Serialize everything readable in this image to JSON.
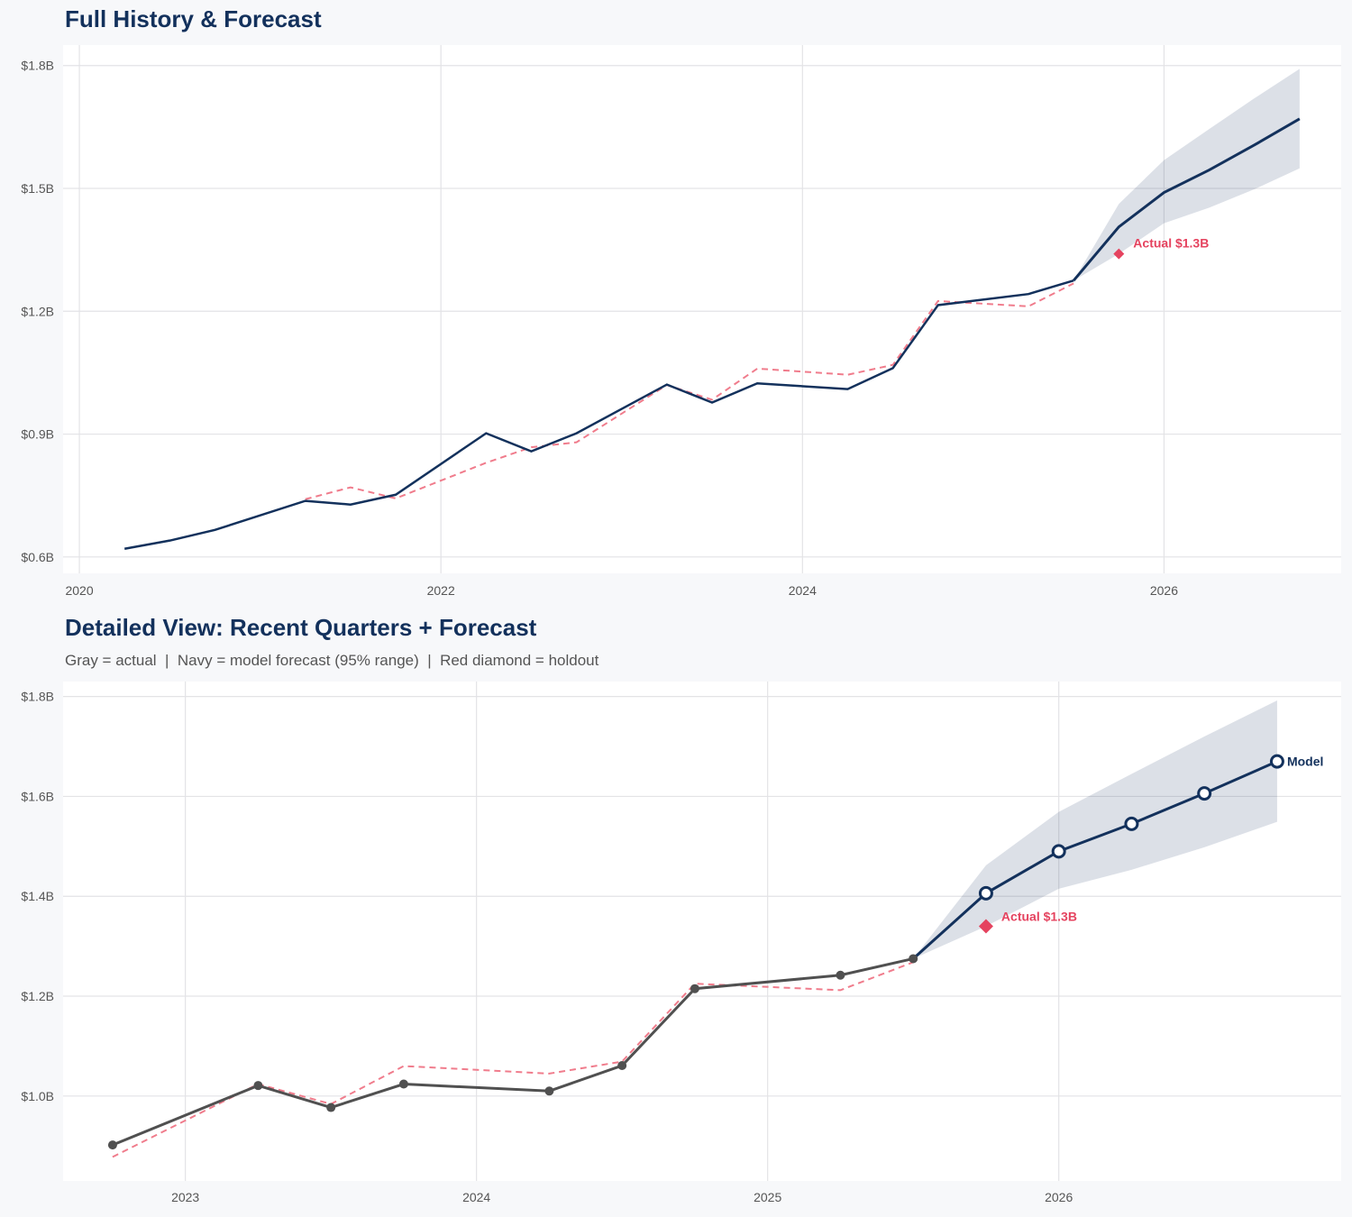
{
  "colors": {
    "navy": "#13315c",
    "gray": "#505050",
    "fit": "#f07c8c",
    "holdout": "#e5435f",
    "band": "#13315c",
    "grid": "#e3e3e6",
    "plot_bg": "#ffffff"
  },
  "chart_data": [
    {
      "type": "line",
      "title": "Full History & Forecast",
      "ylim": [
        0.56,
        1.85
      ],
      "xlim": [
        2019.91,
        2026.98
      ],
      "yticks": [
        0.6,
        0.9,
        1.2,
        1.5,
        1.8
      ],
      "ytick_labels": [
        "$0.6B",
        "$0.9B",
        "$1.2B",
        "$1.5B",
        "$1.8B"
      ],
      "xticks": [
        2020,
        2022,
        2024,
        2026
      ],
      "xtick_labels": [
        "2020",
        "2022",
        "2024",
        "2026"
      ],
      "grid": true,
      "series": [
        {
          "role": "actual",
          "x": [
            2020.25,
            2020.5,
            2020.75,
            2021.25,
            2021.5,
            2021.75,
            2022.25,
            2022.5,
            2022.75,
            2023.25,
            2023.5,
            2023.75,
            2024.25,
            2024.5,
            2024.75,
            2025.25,
            2025.5
          ],
          "values": [
            0.62,
            0.64,
            0.666,
            0.737,
            0.728,
            0.752,
            0.902,
            0.858,
            0.902,
            1.021,
            0.977,
            1.024,
            1.01,
            1.061,
            1.215,
            1.242,
            1.275
          ]
        },
        {
          "role": "fitted",
          "x": [
            2021.25,
            2021.5,
            2021.75,
            2022.25,
            2022.5,
            2022.75,
            2023.25,
            2023.5,
            2023.75,
            2024.25,
            2024.5,
            2024.75,
            2025.25,
            2025.5
          ],
          "values": [
            0.741,
            0.77,
            0.743,
            0.83,
            0.868,
            0.88,
            1.02,
            0.984,
            1.06,
            1.045,
            1.069,
            1.225,
            1.212,
            1.268
          ]
        },
        {
          "role": "forecast",
          "x": [
            2025.5,
            2025.75,
            2026.0,
            2026.25,
            2026.5,
            2026.75
          ],
          "values": [
            1.275,
            1.406,
            1.49,
            1.545,
            1.606,
            1.67
          ]
        }
      ],
      "band": {
        "x": [
          2025.5,
          2025.75,
          2026.0,
          2026.25,
          2026.5,
          2026.75
        ],
        "upper": [
          1.275,
          1.462,
          1.569,
          1.645,
          1.72,
          1.792
        ],
        "lower": [
          1.275,
          1.34,
          1.415,
          1.453,
          1.498,
          1.549
        ]
      },
      "holdout": {
        "x": 2025.75,
        "value": 1.34,
        "label": "Actual $1.3B"
      }
    },
    {
      "type": "line",
      "title": "Detailed View: Recent Quarters + Forecast",
      "subtitle": "Gray = actual  |  Navy = model forecast (95% range)  |  Red diamond = holdout",
      "ylim": [
        0.83,
        1.83
      ],
      "xlim": [
        2022.58,
        2026.97
      ],
      "yticks": [
        1.0,
        1.2,
        1.4,
        1.6,
        1.8
      ],
      "ytick_labels": [
        "$1.0B",
        "$1.2B",
        "$1.4B",
        "$1.6B",
        "$1.8B"
      ],
      "xticks": [
        2023,
        2024,
        2025,
        2026
      ],
      "xtick_labels": [
        "2023",
        "2024",
        "2025",
        "2026"
      ],
      "grid": true,
      "series": [
        {
          "role": "actual",
          "x": [
            2022.75,
            2023.25,
            2023.5,
            2023.75,
            2024.25,
            2024.5,
            2024.75,
            2025.25,
            2025.5
          ],
          "values": [
            0.902,
            1.021,
            0.977,
            1.024,
            1.01,
            1.061,
            1.215,
            1.242,
            1.275
          ]
        },
        {
          "role": "fitted",
          "x": [
            2022.75,
            2023.25,
            2023.5,
            2023.75,
            2024.25,
            2024.5,
            2024.75,
            2025.25,
            2025.5
          ],
          "values": [
            0.878,
            1.024,
            0.984,
            1.06,
            1.045,
            1.069,
            1.225,
            1.212,
            1.268
          ]
        },
        {
          "role": "forecast",
          "name": "Model",
          "x": [
            2025.5,
            2025.75,
            2026.0,
            2026.25,
            2026.5,
            2026.75
          ],
          "values": [
            1.275,
            1.406,
            1.49,
            1.545,
            1.606,
            1.67
          ]
        }
      ],
      "band": {
        "x": [
          2025.5,
          2025.75,
          2026.0,
          2026.25,
          2026.5,
          2026.75
        ],
        "upper": [
          1.275,
          1.462,
          1.569,
          1.645,
          1.72,
          1.792
        ],
        "lower": [
          1.275,
          1.34,
          1.415,
          1.453,
          1.498,
          1.549
        ]
      },
      "holdout": {
        "x": 2025.75,
        "value": 1.34,
        "label": "Actual $1.3B"
      }
    }
  ]
}
